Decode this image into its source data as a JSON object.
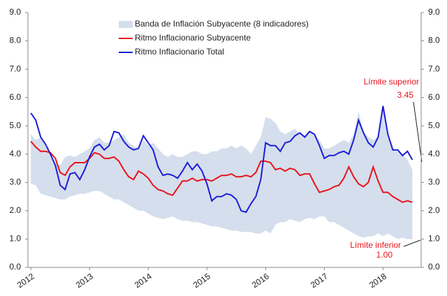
{
  "chart_data": {
    "type": "line",
    "x": [
      2012,
      2012.083,
      2012.167,
      2012.25,
      2012.333,
      2012.417,
      2012.5,
      2012.583,
      2012.667,
      2012.75,
      2012.833,
      2012.917,
      2013,
      2013.083,
      2013.167,
      2013.25,
      2013.333,
      2013.417,
      2013.5,
      2013.583,
      2013.667,
      2013.75,
      2013.833,
      2013.917,
      2014,
      2014.083,
      2014.167,
      2014.25,
      2014.333,
      2014.417,
      2014.5,
      2014.583,
      2014.667,
      2014.75,
      2014.833,
      2014.917,
      2015,
      2015.083,
      2015.167,
      2015.25,
      2015.333,
      2015.417,
      2015.5,
      2015.583,
      2015.667,
      2015.75,
      2015.833,
      2015.917,
      2016,
      2016.083,
      2016.167,
      2016.25,
      2016.333,
      2016.417,
      2016.5,
      2016.583,
      2016.667,
      2016.75,
      2016.833,
      2016.917,
      2017,
      2017.083,
      2017.167,
      2017.25,
      2017.333,
      2017.417,
      2017.5,
      2017.583,
      2017.667,
      2017.75,
      2017.833,
      2017.917,
      2018,
      2018.083,
      2018.167,
      2018.25,
      2018.333,
      2018.417,
      2018.5
    ],
    "xlim": [
      2011.95,
      2018.65
    ],
    "xticks": [
      2012,
      2013,
      2014,
      2015,
      2016,
      2017,
      2018
    ],
    "ylim": [
      0,
      9
    ],
    "yticks": [
      {
        "value": 0,
        "label": "0.0"
      },
      {
        "value": 1,
        "label": "1.0"
      },
      {
        "value": 2,
        "label": "2.0"
      },
      {
        "value": 3,
        "label": "3.0"
      },
      {
        "value": 4,
        "label": "4.0"
      },
      {
        "value": 5,
        "label": "5.0"
      },
      {
        "value": 6,
        "label": "6.0"
      },
      {
        "value": 7,
        "label": "7.0"
      },
      {
        "value": 8,
        "label": "8.0"
      },
      {
        "value": 9,
        "label": "9.0"
      }
    ],
    "y2lim": [
      0,
      9
    ],
    "y2ticks": [
      {
        "value": 0,
        "label": "0.0"
      },
      {
        "value": 1,
        "label": "1.0"
      },
      {
        "value": 2,
        "label": "2.0"
      },
      {
        "value": 3,
        "label": "3.0"
      },
      {
        "value": 4,
        "label": "4.0"
      },
      {
        "value": 5,
        "label": "5.0"
      },
      {
        "value": 6,
        "label": "6.0"
      },
      {
        "value": 7,
        "label": "7.0"
      },
      {
        "value": 8,
        "label": "8.0"
      },
      {
        "value": 9,
        "label": "9.0"
      }
    ],
    "series": [
      {
        "name": "Banda de Inflación Subyacente (8 indicadores)",
        "color": "#d5deec",
        "upper": [
          4.7,
          4.5,
          4.6,
          4.3,
          4.0,
          3.7,
          3.6,
          3.9,
          3.95,
          3.9,
          4.0,
          4.1,
          4.2,
          4.5,
          4.6,
          4.4,
          4.4,
          4.5,
          4.6,
          4.7,
          4.4,
          4.3,
          4.2,
          4.5,
          4.3,
          4.4,
          4.2,
          4.0,
          3.9,
          4.0,
          3.9,
          3.9,
          4.0,
          4.1,
          4.1,
          4.0,
          4.0,
          4.1,
          4.1,
          4.2,
          4.2,
          4.3,
          4.2,
          4.3,
          4.2,
          4.0,
          4.3,
          4.6,
          5.3,
          5.25,
          5.1,
          4.8,
          4.7,
          4.8,
          4.9,
          4.7,
          4.6,
          4.8,
          4.7,
          4.5,
          4.2,
          4.2,
          4.3,
          4.4,
          4.5,
          4.4,
          4.7,
          5.5,
          4.8,
          4.6,
          4.5,
          4.6,
          5.6,
          4.6,
          4.2,
          4.1,
          4.0,
          3.8,
          3.45
        ],
        "lower": [
          2.95,
          2.9,
          2.6,
          2.55,
          2.5,
          2.45,
          2.4,
          2.4,
          2.5,
          2.55,
          2.6,
          2.6,
          2.65,
          2.7,
          2.7,
          2.6,
          2.5,
          2.4,
          2.4,
          2.3,
          2.2,
          2.1,
          2.0,
          2.0,
          1.9,
          1.8,
          1.75,
          1.7,
          1.75,
          1.8,
          1.7,
          1.65,
          1.65,
          1.6,
          1.6,
          1.55,
          1.5,
          1.45,
          1.45,
          1.4,
          1.35,
          1.3,
          1.3,
          1.25,
          1.25,
          1.25,
          1.2,
          1.2,
          1.3,
          1.2,
          1.5,
          1.6,
          1.6,
          1.7,
          1.65,
          1.6,
          1.7,
          1.75,
          1.7,
          1.8,
          1.8,
          1.6,
          1.6,
          1.5,
          1.4,
          1.3,
          1.2,
          1.1,
          1.05,
          1.1,
          1.1,
          1.2,
          1.1,
          1.2,
          1.1,
          1.0,
          1.05,
          1.0,
          1.0
        ]
      },
      {
        "name": "Ritmo Inflacionario Subyacente",
        "color": "#e8141b",
        "values": [
          4.45,
          4.25,
          4.1,
          4.1,
          4.05,
          3.85,
          3.35,
          3.25,
          3.55,
          3.7,
          3.7,
          3.7,
          3.85,
          4.05,
          4.0,
          3.85,
          3.85,
          3.9,
          3.75,
          3.45,
          3.2,
          3.1,
          3.4,
          3.3,
          3.15,
          2.9,
          2.75,
          2.7,
          2.6,
          2.55,
          2.8,
          3.05,
          3.05,
          3.15,
          3.05,
          3.1,
          3.1,
          3.05,
          3.15,
          3.25,
          3.25,
          3.3,
          3.2,
          3.2,
          3.25,
          3.2,
          3.35,
          3.75,
          3.75,
          3.7,
          3.45,
          3.5,
          3.4,
          3.5,
          3.45,
          3.25,
          3.3,
          3.3,
          2.95,
          2.65,
          2.7,
          2.75,
          2.85,
          2.9,
          3.15,
          3.55,
          3.2,
          2.95,
          2.85,
          3.0,
          3.55,
          3.05,
          2.65,
          2.65,
          2.5,
          2.4,
          2.3,
          2.35,
          2.3
        ]
      },
      {
        "name": "Ritmo Inflacionario Total",
        "color": "#1b1fd6",
        "values": [
          5.45,
          5.2,
          4.6,
          4.35,
          4.0,
          3.6,
          2.9,
          2.75,
          3.3,
          3.35,
          3.1,
          3.45,
          3.9,
          4.25,
          4.35,
          4.15,
          4.3,
          4.8,
          4.75,
          4.45,
          4.25,
          4.15,
          4.2,
          4.65,
          4.4,
          4.15,
          3.55,
          3.25,
          3.3,
          3.25,
          3.15,
          3.4,
          3.7,
          3.45,
          3.65,
          3.4,
          2.95,
          2.35,
          2.5,
          2.5,
          2.6,
          2.55,
          2.4,
          2.0,
          1.95,
          2.25,
          2.5,
          3.1,
          4.4,
          4.3,
          4.3,
          4.1,
          4.4,
          4.45,
          4.65,
          4.75,
          4.6,
          4.8,
          4.7,
          4.3,
          3.85,
          3.95,
          3.95,
          4.05,
          4.1,
          4.0,
          4.5,
          5.2,
          4.75,
          4.4,
          4.25,
          4.6,
          5.7,
          4.7,
          4.15,
          4.15,
          3.95,
          4.1,
          3.8
        ]
      }
    ],
    "annotations": [
      "Límite superior",
      "3.45",
      "Límite inferior",
      "1.00"
    ]
  }
}
